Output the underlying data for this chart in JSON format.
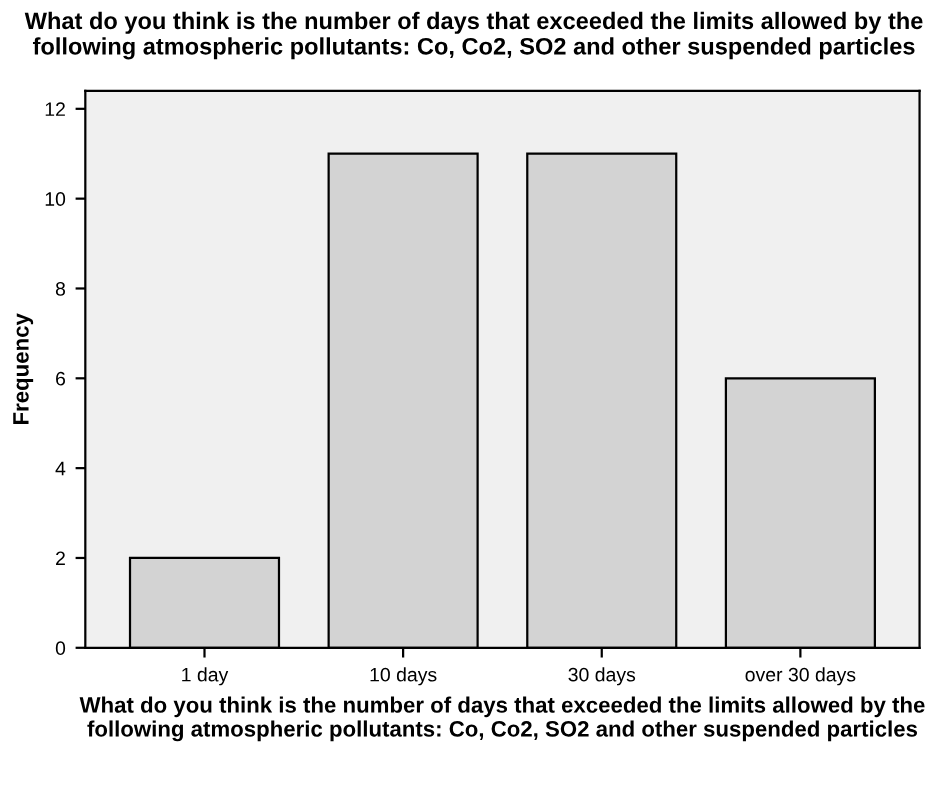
{
  "chart_data": {
    "type": "bar",
    "title": "What do you think is the number of days that exceeded the limits allowed by the following atmospheric pollutants: Co, Co2, SO2 and other suspended particles",
    "xlabel": "What do you think is the number of days that exceeded the limits allowed by the following atmospheric pollutants: Co, Co2, SO2 and other suspended particles",
    "ylabel": "Frequency",
    "categories": [
      "1 day",
      "10 days",
      "30 days",
      "over 30 days"
    ],
    "values": [
      2,
      11,
      11,
      6
    ],
    "color": "#d3d3d3",
    "ylim": [
      0,
      12.4
    ],
    "yticks": [
      0,
      2,
      4,
      6,
      8,
      10,
      12
    ],
    "grid": false
  }
}
